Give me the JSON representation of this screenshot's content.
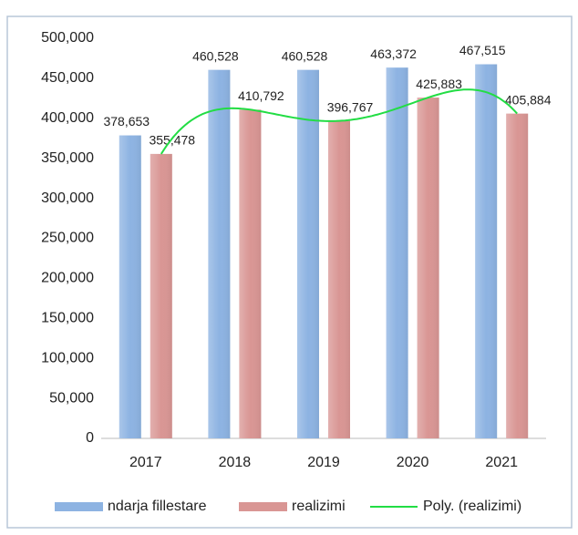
{
  "chart_data": {
    "type": "bar",
    "categories": [
      "2017",
      "2018",
      "2019",
      "2020",
      "2021"
    ],
    "series": [
      {
        "name": "ndarja fillestare",
        "color": "#8db3e2",
        "values": [
          378653,
          460528,
          460528,
          463372,
          467515
        ],
        "value_labels": [
          "378,653",
          "460,528",
          "460,528",
          "463,372",
          "467,515"
        ]
      },
      {
        "name": "realizimi",
        "color": "#d99694",
        "values": [
          355478,
          410792,
          396767,
          425883,
          405884
        ],
        "value_labels": [
          "355,478",
          "410,792",
          "396,767",
          "425,883",
          "405,884"
        ]
      }
    ],
    "trendline": {
      "name": "Poly. (realizimi)",
      "color": "#22dd44"
    },
    "ylim": [
      0,
      500000
    ],
    "yticks": [
      0,
      {
        "value": 50000,
        "label": "50,000"
      },
      {
        "value": 100000,
        "label": "100,000"
      },
      {
        "value": 150000,
        "label": "150,000"
      },
      {
        "value": 200000,
        "label": "200,000"
      },
      {
        "value": 250000,
        "label": "250,000"
      },
      {
        "value": 300000,
        "label": "300,000"
      },
      {
        "value": 350000,
        "label": "350,000"
      },
      {
        "value": 400000,
        "label": "400,000"
      },
      {
        "value": 450000,
        "label": "450,000"
      },
      {
        "value": 500000,
        "label": "500,000"
      }
    ],
    "grid": false,
    "legend": "bottom"
  }
}
